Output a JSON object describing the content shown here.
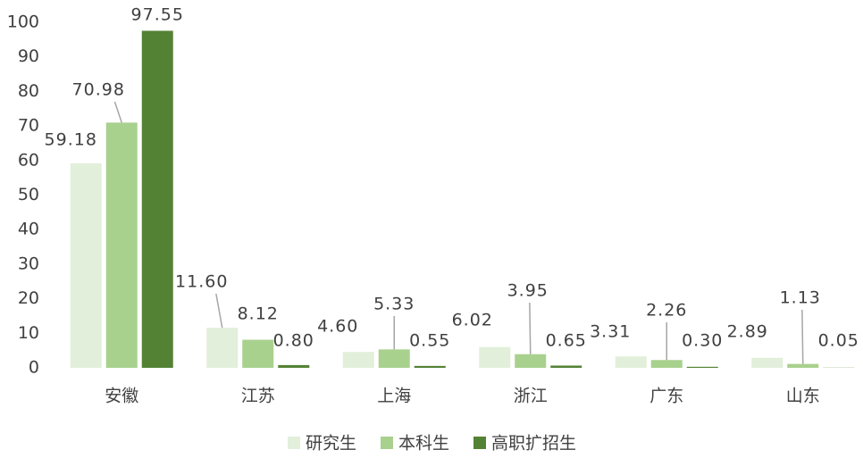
{
  "chart_data": {
    "type": "bar",
    "categories": [
      "安徽",
      "江苏",
      "上海",
      "浙江",
      "广东",
      "山东"
    ],
    "series": [
      {
        "name": "研究生",
        "color": "#e2efda",
        "values": [
          59.18,
          11.6,
          4.6,
          6.02,
          3.31,
          2.89
        ],
        "value_labels": [
          "59.18",
          "11.60",
          "4.60",
          "6.02",
          "3.31",
          "2.89"
        ]
      },
      {
        "name": "本科生",
        "color": "#a9d18e",
        "values": [
          70.98,
          8.12,
          5.33,
          3.95,
          2.26,
          1.13
        ],
        "value_labels": [
          "70.98",
          "8.12",
          "5.33",
          "3.95",
          "2.26",
          "1.13"
        ]
      },
      {
        "name": "高职扩招生",
        "color": "#548235",
        "values": [
          97.55,
          0.8,
          0.55,
          0.65,
          0.3,
          0.05
        ],
        "value_labels": [
          "97.55",
          "0.80",
          "0.55",
          "0.65",
          "0.30",
          "0.05"
        ]
      }
    ],
    "ylim": [
      0,
      100
    ],
    "yticks": [
      0,
      10,
      20,
      30,
      40,
      50,
      60,
      70,
      80,
      90,
      100
    ],
    "grid": false,
    "legend": "bottom"
  }
}
